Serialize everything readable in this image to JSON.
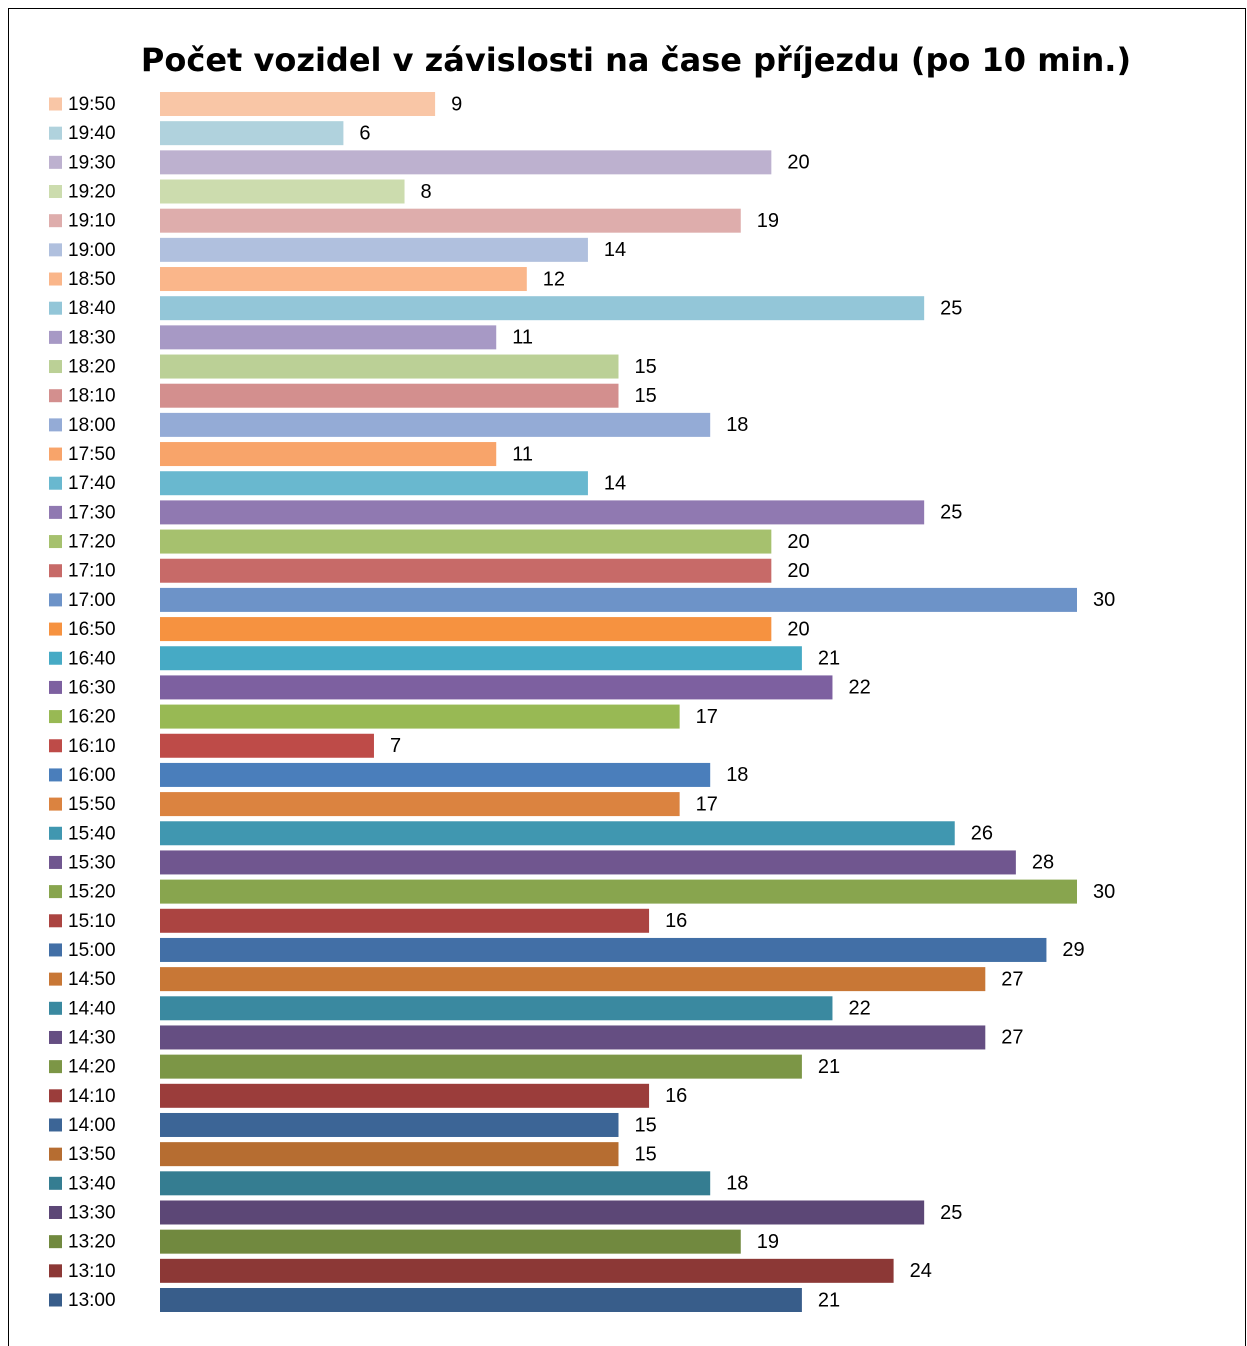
{
  "chart_data": {
    "type": "bar",
    "orientation": "horizontal",
    "title": "Počet vozidel v závislosti na čase příjezdu (po 10 min.)",
    "categories": [
      "19:50",
      "19:40",
      "19:30",
      "19:20",
      "19:10",
      "19:00",
      "18:50",
      "18:40",
      "18:30",
      "18:20",
      "18:10",
      "18:00",
      "17:50",
      "17:40",
      "17:30",
      "17:20",
      "17:10",
      "17:00",
      "16:50",
      "16:40",
      "16:30",
      "16:20",
      "16:10",
      "16:00",
      "15:50",
      "15:40",
      "15:30",
      "15:20",
      "15:10",
      "15:00",
      "14:50",
      "14:40",
      "14:30",
      "14:20",
      "14:10",
      "14:00",
      "13:50",
      "13:40",
      "13:30",
      "13:20",
      "13:10",
      "13:00"
    ],
    "values": [
      9,
      6,
      20,
      8,
      19,
      14,
      12,
      25,
      11,
      15,
      15,
      18,
      11,
      14,
      25,
      20,
      20,
      30,
      20,
      21,
      22,
      17,
      7,
      18,
      17,
      26,
      28,
      30,
      16,
      29,
      27,
      22,
      27,
      21,
      16,
      15,
      15,
      18,
      25,
      19,
      24,
      21
    ],
    "colors": [
      "#f9c6a6",
      "#b0d2dd",
      "#bdb1cf",
      "#ccdcae",
      "#deadac",
      "#b0c0de",
      "#fab68a",
      "#93c6d8",
      "#a799c5",
      "#bbd096",
      "#d38f8e",
      "#94abd6",
      "#f8a46a",
      "#69b8cf",
      "#9079b1",
      "#a6c16e",
      "#c76a68",
      "#6d93c8",
      "#f69240",
      "#46aac5",
      "#7d60a0",
      "#98b954",
      "#be4b48",
      "#4a7ebb",
      "#db8340",
      "#4097b0",
      "#70568f",
      "#88a54e",
      "#ab4441",
      "#426fa6",
      "#c87736",
      "#3a89a0",
      "#654e82",
      "#7c9646",
      "#9b3d3b",
      "#3c6596",
      "#b66d31",
      "#357d91",
      "#5c4776",
      "#71893f",
      "#8c3836",
      "#385d8a"
    ],
    "xlim": [
      0,
      30
    ],
    "data_labels": true
  }
}
